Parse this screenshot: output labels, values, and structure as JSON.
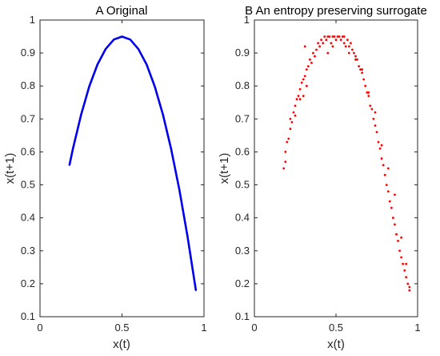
{
  "chart_data": [
    {
      "type": "line",
      "title": "A Original",
      "xlabel": "x(t)",
      "ylabel": "x(t+1)",
      "xlim": [
        0,
        1
      ],
      "ylim": [
        0.1,
        1
      ],
      "xticks": [
        0,
        0.5,
        1
      ],
      "xtick_labels": [
        "0",
        "0.5",
        "1"
      ],
      "yticks": [
        0.1,
        0.2,
        0.3,
        0.4,
        0.5,
        0.6,
        0.7,
        0.8,
        0.9,
        1
      ],
      "ytick_labels": [
        "0.1",
        "0.2",
        "0.3",
        "0.4",
        "0.5",
        "0.6",
        "0.7",
        "0.8",
        "0.9",
        "1"
      ],
      "color": "#0000ee",
      "grid": false,
      "x": [
        0.18,
        0.2,
        0.25,
        0.3,
        0.35,
        0.4,
        0.45,
        0.5,
        0.55,
        0.6,
        0.65,
        0.7,
        0.75,
        0.8,
        0.85,
        0.9,
        0.95
      ],
      "y": [
        0.561,
        0.608,
        0.712,
        0.798,
        0.865,
        0.912,
        0.941,
        0.95,
        0.941,
        0.912,
        0.865,
        0.798,
        0.712,
        0.608,
        0.484,
        0.342,
        0.181
      ]
    },
    {
      "type": "scatter",
      "title": "B An entropy preserving surrogate",
      "xlabel": "x(t)",
      "ylabel": "x(t+1)",
      "xlim": [
        0,
        1
      ],
      "ylim": [
        0.1,
        1
      ],
      "xticks": [
        0,
        0.5,
        1
      ],
      "xtick_labels": [
        "0",
        "0.5",
        "1"
      ],
      "yticks": [
        0.1,
        0.2,
        0.3,
        0.4,
        0.5,
        0.6,
        0.7,
        0.8,
        0.9,
        1
      ],
      "ytick_labels": [
        "0.1",
        "0.2",
        "0.3",
        "0.4",
        "0.5",
        "0.6",
        "0.7",
        "0.8",
        "0.9",
        "1"
      ],
      "color": "#ff0000",
      "grid": false,
      "x": [
        0.18,
        0.19,
        0.19,
        0.2,
        0.21,
        0.22,
        0.22,
        0.23,
        0.24,
        0.25,
        0.25,
        0.26,
        0.27,
        0.28,
        0.28,
        0.29,
        0.3,
        0.31,
        0.31,
        0.32,
        0.33,
        0.34,
        0.35,
        0.36,
        0.37,
        0.38,
        0.39,
        0.4,
        0.41,
        0.42,
        0.43,
        0.44,
        0.45,
        0.46,
        0.47,
        0.48,
        0.49,
        0.5,
        0.51,
        0.52,
        0.53,
        0.54,
        0.55,
        0.56,
        0.57,
        0.58,
        0.59,
        0.6,
        0.61,
        0.62,
        0.63,
        0.64,
        0.65,
        0.66,
        0.67,
        0.68,
        0.69,
        0.7,
        0.71,
        0.72,
        0.73,
        0.74,
        0.75,
        0.76,
        0.77,
        0.78,
        0.79,
        0.8,
        0.81,
        0.82,
        0.83,
        0.84,
        0.85,
        0.86,
        0.87,
        0.88,
        0.89,
        0.9,
        0.91,
        0.92,
        0.93,
        0.94,
        0.95,
        0.95,
        0.3,
        0.32,
        0.45,
        0.48,
        0.55,
        0.58,
        0.62,
        0.66,
        0.7,
        0.74,
        0.78,
        0.82,
        0.86,
        0.9,
        0.93
      ],
      "y": [
        0.55,
        0.6,
        0.57,
        0.63,
        0.64,
        0.67,
        0.7,
        0.69,
        0.72,
        0.74,
        0.71,
        0.76,
        0.77,
        0.79,
        0.76,
        0.81,
        0.82,
        0.83,
        0.92,
        0.85,
        0.86,
        0.88,
        0.87,
        0.9,
        0.89,
        0.91,
        0.93,
        0.92,
        0.94,
        0.93,
        0.95,
        0.94,
        0.95,
        0.95,
        0.93,
        0.95,
        0.95,
        0.94,
        0.95,
        0.95,
        0.94,
        0.95,
        0.95,
        0.92,
        0.94,
        0.92,
        0.93,
        0.91,
        0.9,
        0.89,
        0.88,
        0.86,
        0.85,
        0.84,
        0.82,
        0.8,
        0.78,
        0.77,
        0.74,
        0.73,
        0.7,
        0.68,
        0.66,
        0.63,
        0.61,
        0.58,
        0.56,
        0.53,
        0.5,
        0.48,
        0.45,
        0.43,
        0.4,
        0.38,
        0.35,
        0.33,
        0.3,
        0.28,
        0.26,
        0.24,
        0.22,
        0.2,
        0.19,
        0.18,
        0.77,
        0.8,
        0.9,
        0.92,
        0.93,
        0.9,
        0.88,
        0.85,
        0.78,
        0.72,
        0.62,
        0.55,
        0.47,
        0.34,
        0.26
      ]
    }
  ]
}
